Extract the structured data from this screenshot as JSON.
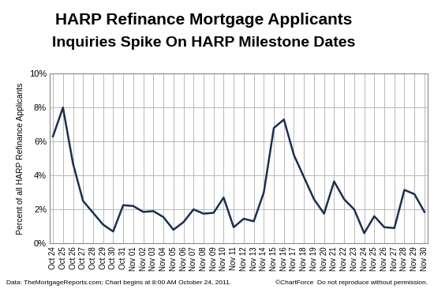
{
  "chart_data": {
    "type": "line",
    "title": "HARP Refinance Mortgage Applicants",
    "subtitle": "Inquiries Spike On HARP Milestone Dates",
    "y_label": "Percent of all HARP Refinance Applicants",
    "categories": [
      "Oct 24",
      "Oct 25",
      "Oct 26",
      "Oct 27",
      "Oct 28",
      "Oct 29",
      "Oct 30",
      "Oct 31",
      "Nov 01",
      "Nov 02",
      "Nov 03",
      "Nov 04",
      "Nov 05",
      "Nov 06",
      "Nov 07",
      "Nov 08",
      "Nov 09",
      "Nov 10",
      "Nov 11",
      "Nov 12",
      "Nov 13",
      "Nov 14",
      "Nov 15",
      "Nov 16",
      "Nov 17",
      "Nov 18",
      "Nov 19",
      "Nov 20",
      "Nov 21",
      "Nov 22",
      "Nov 23",
      "Nov 24",
      "Nov 25",
      "Nov 26",
      "Nov 27",
      "Nov 28",
      "Nov 29",
      "Nov 30"
    ],
    "values": [
      6.3,
      8.0,
      4.7,
      2.5,
      1.8,
      1.1,
      0.7,
      2.25,
      2.2,
      1.85,
      1.9,
      1.55,
      0.8,
      1.25,
      2.0,
      1.75,
      1.8,
      2.7,
      0.95,
      1.45,
      1.3,
      3.0,
      6.8,
      7.3,
      5.2,
      3.9,
      2.6,
      1.75,
      3.65,
      2.6,
      2.0,
      0.6,
      1.6,
      0.95,
      0.9,
      3.15,
      2.9,
      1.85
    ],
    "color": "#1c2f4f",
    "ylim": [
      0,
      10
    ],
    "yticks": [
      {
        "value": 0,
        "label": "0%"
      },
      {
        "value": 2,
        "label": "2%"
      },
      {
        "value": 4,
        "label": "4%"
      },
      {
        "value": 6,
        "label": "6%"
      },
      {
        "value": 8,
        "label": "8%"
      },
      {
        "value": 10,
        "label": "10%"
      }
    ],
    "grid": true,
    "annotations": [
      "Data: TheMortgageReports.com; Chart begins at 8:00 AM October 24, 2011.",
      "©ChartForce  Do not reproduce without permission."
    ]
  }
}
